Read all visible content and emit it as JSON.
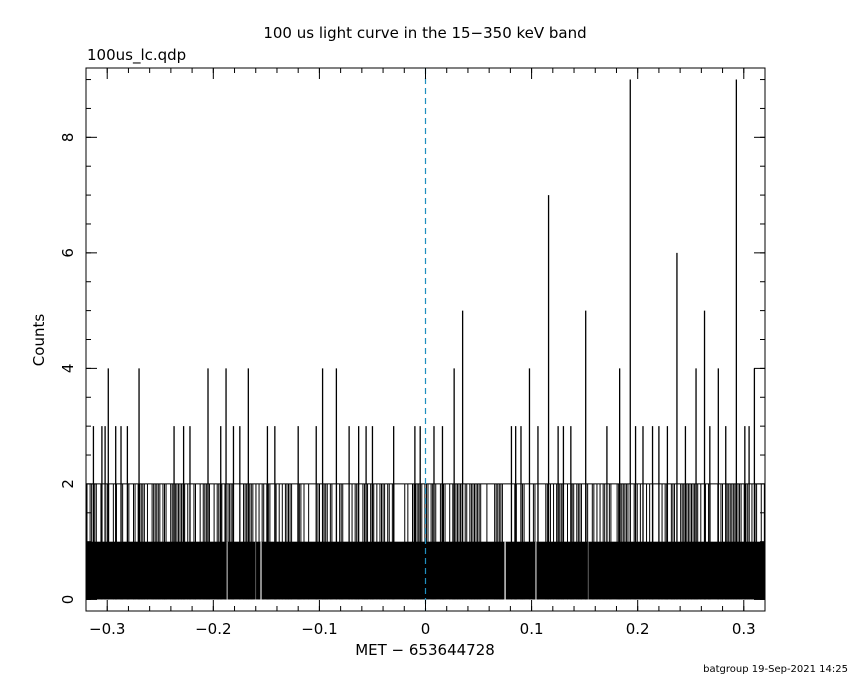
{
  "chart_data": {
    "type": "bar",
    "title": "100 us light curve in the 15−350 keV band",
    "file_label": "100us_lc.qdp",
    "xlabel": "MET − 653644728",
    "ylabel": "Counts",
    "footer": "batgroup 19-Sep-2021 14:25",
    "xlim": [
      -0.32,
      0.32
    ],
    "ylim": [
      -0.2,
      9.2
    ],
    "bin_width": 0.0001,
    "x_ticks": [
      {
        "value": -0.3,
        "label": "−0.3"
      },
      {
        "value": -0.2,
        "label": "−0.2"
      },
      {
        "value": -0.1,
        "label": "−0.1"
      },
      {
        "value": 0,
        "label": "0"
      },
      {
        "value": 0.1,
        "label": "0.1"
      },
      {
        "value": 0.2,
        "label": "0.2"
      },
      {
        "value": 0.3,
        "label": "0.3"
      }
    ],
    "y_ticks": [
      {
        "value": 0,
        "label": "0"
      },
      {
        "value": 2,
        "label": "2"
      },
      {
        "value": 4,
        "label": "4"
      },
      {
        "value": 6,
        "label": "6"
      },
      {
        "value": 8,
        "label": "8"
      }
    ],
    "trigger_line": {
      "x": 0,
      "color": "#1f8fbf",
      "style": "dashed"
    },
    "baseline_level": 1,
    "floor_level": 2,
    "gaps": [
      -0.187,
      -0.16,
      -0.155,
      0.075,
      0.104,
      0.153
    ],
    "peaks": [
      {
        "x": 0.193,
        "counts": 9
      },
      {
        "x": 0.293,
        "counts": 9
      },
      {
        "x": 0.116,
        "counts": 7
      },
      {
        "x": 0.237,
        "counts": 6
      },
      {
        "x": 0.035,
        "counts": 5
      },
      {
        "x": 0.151,
        "counts": 5
      },
      {
        "x": 0.263,
        "counts": 5
      },
      {
        "x": 0.255,
        "counts": 4
      },
      {
        "x": -0.299,
        "counts": 4
      },
      {
        "x": -0.27,
        "counts": 4
      },
      {
        "x": -0.205,
        "counts": 4
      },
      {
        "x": -0.188,
        "counts": 4
      },
      {
        "x": -0.167,
        "counts": 4
      },
      {
        "x": -0.097,
        "counts": 4
      },
      {
        "x": -0.084,
        "counts": 4
      },
      {
        "x": 0.027,
        "counts": 4
      },
      {
        "x": 0.098,
        "counts": 4
      },
      {
        "x": 0.183,
        "counts": 4
      },
      {
        "x": 0.276,
        "counts": 4
      },
      {
        "x": 0.31,
        "counts": 4
      },
      {
        "x": -0.313,
        "counts": 3
      },
      {
        "x": -0.305,
        "counts": 3
      },
      {
        "x": -0.302,
        "counts": 3
      },
      {
        "x": -0.292,
        "counts": 3
      },
      {
        "x": -0.287,
        "counts": 3
      },
      {
        "x": -0.281,
        "counts": 3
      },
      {
        "x": -0.237,
        "counts": 3
      },
      {
        "x": -0.228,
        "counts": 3
      },
      {
        "x": -0.222,
        "counts": 3
      },
      {
        "x": -0.193,
        "counts": 3
      },
      {
        "x": -0.181,
        "counts": 3
      },
      {
        "x": -0.175,
        "counts": 3
      },
      {
        "x": -0.149,
        "counts": 3
      },
      {
        "x": -0.142,
        "counts": 3
      },
      {
        "x": -0.12,
        "counts": 3
      },
      {
        "x": -0.103,
        "counts": 3
      },
      {
        "x": -0.072,
        "counts": 3
      },
      {
        "x": -0.063,
        "counts": 3
      },
      {
        "x": -0.056,
        "counts": 3
      },
      {
        "x": -0.05,
        "counts": 3
      },
      {
        "x": -0.03,
        "counts": 3
      },
      {
        "x": -0.01,
        "counts": 3
      },
      {
        "x": -0.005,
        "counts": 3
      },
      {
        "x": 0.008,
        "counts": 3
      },
      {
        "x": 0.016,
        "counts": 3
      },
      {
        "x": 0.081,
        "counts": 3
      },
      {
        "x": 0.085,
        "counts": 3
      },
      {
        "x": 0.09,
        "counts": 3
      },
      {
        "x": 0.106,
        "counts": 3
      },
      {
        "x": 0.125,
        "counts": 3
      },
      {
        "x": 0.13,
        "counts": 3
      },
      {
        "x": 0.137,
        "counts": 3
      },
      {
        "x": 0.171,
        "counts": 3
      },
      {
        "x": 0.198,
        "counts": 3
      },
      {
        "x": 0.205,
        "counts": 3
      },
      {
        "x": 0.214,
        "counts": 3
      },
      {
        "x": 0.22,
        "counts": 3
      },
      {
        "x": 0.228,
        "counts": 3
      },
      {
        "x": 0.245,
        "counts": 3
      },
      {
        "x": 0.268,
        "counts": 3
      },
      {
        "x": 0.283,
        "counts": 3
      },
      {
        "x": 0.301,
        "counts": 3
      },
      {
        "x": 0.305,
        "counts": 3
      }
    ]
  }
}
